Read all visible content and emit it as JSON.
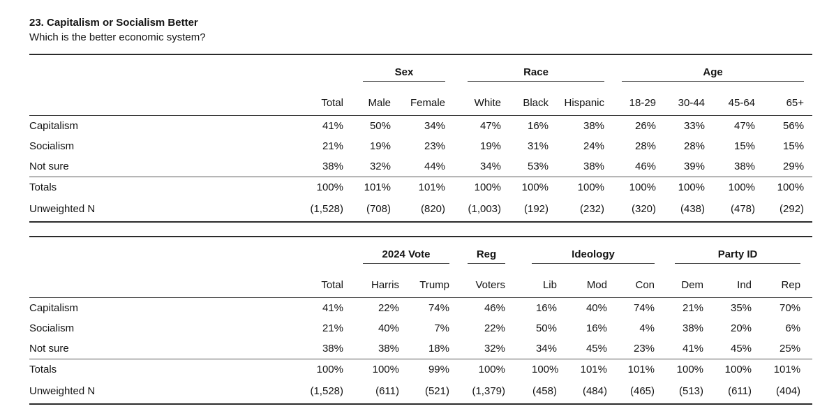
{
  "page": {
    "question_title": "23. Capitalism or Socialism Better",
    "question_text": "Which is the better economic system?"
  },
  "tables": [
    {
      "name": "demographics",
      "groups": [
        {
          "label": "Sex"
        },
        {
          "label": "Race"
        },
        {
          "label": "Age"
        }
      ],
      "columns": [
        "Total",
        "Male",
        "Female",
        "White",
        "Black",
        "Hispanic",
        "18-29",
        "30-44",
        "45-64",
        "65+"
      ],
      "answer_rows": [
        {
          "label": "Capitalism",
          "values": [
            "41%",
            "50%",
            "34%",
            "47%",
            "16%",
            "38%",
            "26%",
            "33%",
            "47%",
            "56%"
          ]
        },
        {
          "label": "Socialism",
          "values": [
            "21%",
            "19%",
            "23%",
            "19%",
            "31%",
            "24%",
            "28%",
            "28%",
            "15%",
            "15%"
          ]
        },
        {
          "label": "Not sure",
          "values": [
            "38%",
            "32%",
            "44%",
            "34%",
            "53%",
            "38%",
            "46%",
            "39%",
            "38%",
            "29%"
          ]
        }
      ],
      "summary_rows": [
        {
          "label": "Totals",
          "values": [
            "100%",
            "101%",
            "101%",
            "100%",
            "100%",
            "100%",
            "100%",
            "100%",
            "100%",
            "100%"
          ]
        },
        {
          "label": "Unweighted N",
          "values": [
            "(1,528)",
            "(708)",
            "(820)",
            "(1,003)",
            "(192)",
            "(232)",
            "(320)",
            "(438)",
            "(478)",
            "(292)"
          ]
        }
      ]
    },
    {
      "name": "politics",
      "groups": [
        {
          "label": "2024 Vote"
        },
        {
          "label": "Reg"
        },
        {
          "label": "Ideology"
        },
        {
          "label": "Party ID"
        }
      ],
      "columns": [
        "Total",
        "Harris",
        "Trump",
        "Voters",
        "Lib",
        "Mod",
        "Con",
        "Dem",
        "Ind",
        "Rep"
      ],
      "answer_rows": [
        {
          "label": "Capitalism",
          "values": [
            "41%",
            "22%",
            "74%",
            "46%",
            "16%",
            "40%",
            "74%",
            "21%",
            "35%",
            "70%"
          ]
        },
        {
          "label": "Socialism",
          "values": [
            "21%",
            "40%",
            "7%",
            "22%",
            "50%",
            "16%",
            "4%",
            "38%",
            "20%",
            "6%"
          ]
        },
        {
          "label": "Not sure",
          "values": [
            "38%",
            "38%",
            "18%",
            "32%",
            "34%",
            "45%",
            "23%",
            "41%",
            "45%",
            "25%"
          ]
        }
      ],
      "summary_rows": [
        {
          "label": "Totals",
          "values": [
            "100%",
            "100%",
            "99%",
            "100%",
            "100%",
            "101%",
            "101%",
            "100%",
            "100%",
            "101%"
          ]
        },
        {
          "label": "Unweighted N",
          "values": [
            "(1,528)",
            "(611)",
            "(521)",
            "(1,379)",
            "(458)",
            "(484)",
            "(465)",
            "(513)",
            "(611)",
            "(404)"
          ]
        }
      ]
    }
  ]
}
